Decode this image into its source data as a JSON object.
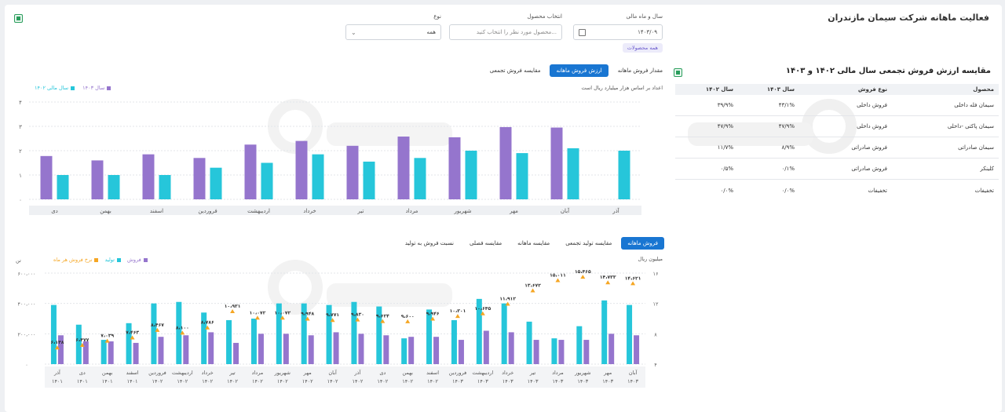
{
  "page_title": "فعالیت ماهانه شرکت سیمان مازندران",
  "filters": {
    "period_label": "سال و ماه مالی",
    "period_value": "۱۴۰۳/۰۹",
    "product_label": "انتخاب محصول",
    "product_placeholder": "محصول مورد نظر را انتخاب کنید...",
    "type_label": "نوع",
    "type_value": "همه",
    "chip": "همه محصولات"
  },
  "table_section": {
    "title": "مقایسه ارزش فروش تجمعی سال مالی ۱۴۰۲ و ۱۴۰۳",
    "headers": [
      "محصول",
      "نوع فروش",
      "سال ۱۴۰۳",
      "سال ۱۴۰۲"
    ],
    "rows": [
      [
        "سیمان فله داخلی",
        "فروش داخلی",
        "۴۳/۱%",
        "۳۹/۹%"
      ],
      [
        "سیمان پاکتی -داخلی",
        "فروش داخلی",
        "۴۷/۹%",
        "۴۷/۹%"
      ],
      [
        "سیمان صادراتی",
        "فروش صادراتی",
        "۸/۹%",
        "۱۱/۷%"
      ],
      [
        "کلینکر",
        "فروش صادراتی",
        "۰/۱%",
        "۰/۵%"
      ],
      [
        "تخفیفات",
        "تخفیفات",
        "۰/۰%",
        "۰/۰%"
      ]
    ]
  },
  "top_chart": {
    "tabs": [
      "مقدار فروش ماهانه",
      "ارزش فروش ماهانه",
      "مقایسه فروش تجمعی"
    ],
    "active_tab": 1,
    "note": "اعداد بر اساس هزار میلیارد ریال است",
    "legend": [
      "سال ۱۴۰۳",
      "سال مالی ۱۴۰۲"
    ]
  },
  "bottom_chart": {
    "tabs": [
      "فروش ماهانه",
      "مقایسه تولید تجمعی",
      "مقایسه ماهانه",
      "مقایسه فصلی",
      "نسبت فروش به تولید"
    ],
    "active_tab": 0,
    "left_unit": "تن",
    "right_unit": "میلیون ریال",
    "legend": [
      "فروش",
      "تولید",
      "نرخ فروش هر ماه"
    ]
  },
  "colors": {
    "teal": "#26c6da",
    "purple": "#9575cd",
    "orange": "#f5a623",
    "blue": "#1976d2"
  },
  "chart_data": [
    {
      "type": "bar",
      "title": "",
      "xlabel": "",
      "ylabel": "",
      "ylim": [
        0,
        4
      ],
      "yticks": [
        "۰",
        "۱",
        "۲",
        "۳",
        "۴"
      ],
      "categories": [
        "آذر",
        "آبان",
        "مهر",
        "شهریور",
        "مرداد",
        "تیر",
        "خرداد",
        "اردیبهشت",
        "فروردین",
        "اسفند",
        "بهمن",
        "دی"
      ],
      "series": [
        {
          "name": "سال مالی ۱۴۰۲",
          "values": [
            2.0,
            2.1,
            1.9,
            2.0,
            1.7,
            1.55,
            1.85,
            1.5,
            1.3,
            1.0,
            1.0,
            1.0
          ]
        },
        {
          "name": "سال ۱۴۰۳",
          "values": [
            null,
            2.95,
            2.97,
            2.55,
            2.58,
            2.2,
            2.4,
            2.25,
            1.7,
            1.85,
            1.6,
            1.78
          ]
        }
      ],
      "grid": true,
      "legend": "top-left"
    },
    {
      "type": "bar",
      "title": "",
      "ylim": [
        0,
        400000
      ],
      "yticks_left": [
        "۰",
        "۲۰۰،۰۰۰",
        "۴۰۰،۰۰۰",
        "۶۰۰،۰۰۰"
      ],
      "yticks_right": [
        "۴",
        "۸",
        "۱۲",
        "۱۶"
      ],
      "categories": [
        [
          "آبان",
          "۱۴۰۳"
        ],
        [
          "مهر",
          "۱۴۰۳"
        ],
        [
          "شهریور",
          "۱۴۰۳"
        ],
        [
          "مرداد",
          "۱۴۰۳"
        ],
        [
          "تیر",
          "۱۴۰۳"
        ],
        [
          "خرداد",
          "۱۴۰۳"
        ],
        [
          "اردیبهشت",
          "۱۴۰۳"
        ],
        [
          "فروردین",
          "۱۴۰۳"
        ],
        [
          "اسفند",
          "۱۴۰۲"
        ],
        [
          "بهمن",
          "۱۴۰۲"
        ],
        [
          "دی",
          "۱۴۰۲"
        ],
        [
          "آذر",
          "۱۴۰۲"
        ],
        [
          "آبان",
          "۱۴۰۲"
        ],
        [
          "مهر",
          "۱۴۰۲"
        ],
        [
          "شهریور",
          "۱۴۰۲"
        ],
        [
          "مرداد",
          "۱۴۰۲"
        ],
        [
          "تیر",
          "۱۴۰۲"
        ],
        [
          "خرداد",
          "۱۴۰۲"
        ],
        [
          "اردیبهشت",
          "۱۴۰۲"
        ],
        [
          "فروردین",
          "۱۴۰۲"
        ],
        [
          "اسفند",
          "۱۴۰۱"
        ],
        [
          "بهمن",
          "۱۴۰۱"
        ],
        [
          "دی",
          "۱۴۰۱"
        ],
        [
          "آذر",
          "۱۴۰۱"
        ]
      ],
      "series": [
        {
          "name": "تولید",
          "values": [
            390000,
            420000,
            250000,
            170000,
            280000,
            400000,
            430000,
            290000,
            360000,
            170000,
            380000,
            410000,
            390000,
            400000,
            400000,
            300000,
            290000,
            340000,
            410000,
            400000,
            270000,
            160000,
            260000,
            390000
          ]
        },
        {
          "name": "فروش",
          "values": [
            190000,
            200000,
            160000,
            160000,
            160000,
            210000,
            220000,
            160000,
            180000,
            180000,
            190000,
            200000,
            210000,
            190000,
            200000,
            200000,
            140000,
            210000,
            190000,
            180000,
            140000,
            150000,
            150000,
            190000
          ]
        },
        {
          "name": "نرخ فروش هر ماه",
          "values": [
            14.621,
            14.733,
            15.465,
            15.011,
            13.672,
            11.912,
            10.645,
            10.301,
            9.946,
            9.6,
            9.624,
            9.83,
            9.771,
            9.948,
            10.072,
            10.072,
            10.931,
            8.786,
            8.1,
            8.467,
            7.463,
            7.039,
            6.477,
            6.148
          ]
        }
      ],
      "point_labels": [
        "۱۴،۶۲۱",
        "۱۴،۷۳۳",
        "۱۵،۴۶۵",
        "۱۵،۰۱۱",
        "۱۳،۶۷۲",
        "۱۱،۹۱۲",
        "۱۰،۶۴۵",
        "۱۰،۳۰۱",
        "۹،۹۴۶",
        "۹،۶۰۰",
        "۹،۶۲۴",
        "۹،۸۳۰",
        "۹،۷۷۱",
        "۹،۹۴۸",
        "۱۰،۰۷۲",
        "۱۰،۰۷۲",
        "۱۰،۹۳۱",
        "۸،۷۸۶",
        "۸،۱۰۰",
        "۸،۴۶۷",
        "۷،۴۶۳",
        "۷،۰۳۹",
        "۶،۴۷۷",
        "۶،۱۴۸"
      ],
      "grid": true,
      "legend": "top-left"
    }
  ]
}
